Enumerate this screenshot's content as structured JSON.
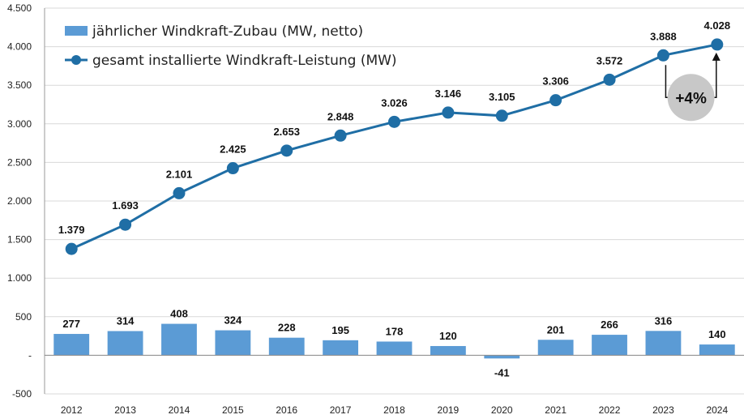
{
  "chart_data": {
    "type": "bar+line",
    "categories": [
      "2012",
      "2013",
      "2014",
      "2015",
      "2016",
      "2017",
      "2018",
      "2019",
      "2020",
      "2021",
      "2022",
      "2023",
      "2024"
    ],
    "series": [
      {
        "name": "jährlicher Windkraft-Zubau (MW, netto)",
        "type": "bar",
        "values": [
          277,
          314,
          408,
          324,
          228,
          195,
          178,
          120,
          -41,
          201,
          266,
          316,
          140
        ],
        "labels": [
          "277",
          "314",
          "408",
          "324",
          "228",
          "195",
          "178",
          "120",
          "-41",
          "201",
          "266",
          "316",
          "140"
        ],
        "color": "#5b9bd5"
      },
      {
        "name": "gesamt installierte Windkraft-Leistung (MW)",
        "type": "line",
        "values": [
          1379,
          1693,
          2101,
          2425,
          2653,
          2848,
          3026,
          3146,
          3105,
          3306,
          3572,
          3888,
          4028
        ],
        "labels": [
          "1.379",
          "1.693",
          "2.101",
          "2.425",
          "2.653",
          "2.848",
          "3.026",
          "3.146",
          "3.105",
          "3.306",
          "3.572",
          "3.888",
          "4.028"
        ],
        "color": "#1f6ea5"
      }
    ],
    "ylim": [
      -500,
      4500
    ],
    "yticks": [
      -500,
      0,
      500,
      1000,
      1500,
      2000,
      2500,
      3000,
      3500,
      4000,
      4500
    ],
    "ytick_labels": [
      "-500",
      "-",
      "500",
      "1.000",
      "1.500",
      "2.000",
      "2.500",
      "3.000",
      "3.500",
      "4.000",
      "4.500"
    ],
    "grid": true,
    "legend_position": "top-left",
    "annotation": {
      "text": "+4%",
      "from": "2023",
      "to": "2024",
      "color": "#c8c8c8"
    }
  }
}
